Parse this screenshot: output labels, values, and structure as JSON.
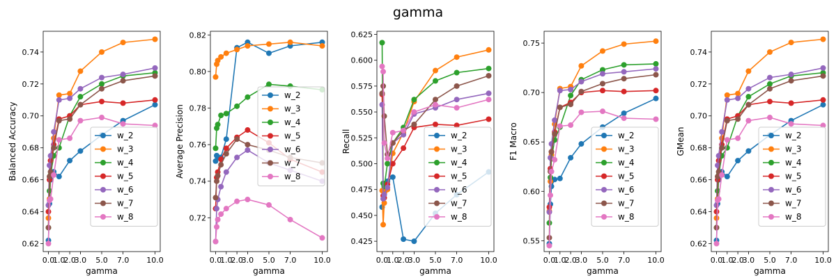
{
  "figure": {
    "title": "gamma"
  },
  "series_colors": {
    "w_2": "#1f77b4",
    "w_3": "#ff7f0e",
    "w_4": "#2ca02c",
    "w_5": "#d62728",
    "w_6": "#9467bd",
    "w_7": "#8c564b",
    "w_8": "#e377c2"
  },
  "chart_data": [
    {
      "type": "line",
      "xlabel": "gamma",
      "ylabel": "Balanced Accuracy",
      "x": [
        0.0,
        0.1,
        0.2,
        0.5,
        1.0,
        2.0,
        3.0,
        5.0,
        7.0,
        10.0
      ],
      "xticks": [
        0.0,
        1.0,
        2.0,
        3.0,
        5.0,
        7.0,
        10.0
      ],
      "xtick_labels": [
        "0.0",
        "1.0",
        "2.0",
        "3.0",
        "5.0",
        "7.0",
        "10.0"
      ],
      "ylim": [
        0.615,
        0.753
      ],
      "yticks": [
        0.62,
        0.64,
        0.66,
        0.68,
        0.7,
        0.72,
        0.74
      ],
      "ytick_labels": [
        "0.62",
        "0.64",
        "0.66",
        "0.68",
        "0.70",
        "0.72",
        "0.74"
      ],
      "legend": "lower-right",
      "series": [
        {
          "name": "w_2",
          "values": [
            0.622,
            0.645,
            0.66,
            0.665,
            0.662,
            0.672,
            0.678,
            0.688,
            0.697,
            0.707
          ]
        },
        {
          "name": "w_3",
          "values": [
            0.636,
            0.648,
            0.663,
            0.686,
            0.713,
            0.714,
            0.728,
            0.74,
            0.746,
            0.748
          ]
        },
        {
          "name": "w_4",
          "values": [
            0.63,
            0.653,
            0.663,
            0.675,
            0.68,
            0.7,
            0.712,
            0.72,
            0.725,
            0.727
          ]
        },
        {
          "name": "w_5",
          "values": [
            0.64,
            0.66,
            0.672,
            0.682,
            0.698,
            0.7,
            0.707,
            0.709,
            0.708,
            0.71
          ]
        },
        {
          "name": "w_6",
          "values": [
            0.644,
            0.669,
            0.675,
            0.69,
            0.71,
            0.711,
            0.717,
            0.724,
            0.726,
            0.73
          ]
        },
        {
          "name": "w_7",
          "values": [
            0.63,
            0.662,
            0.665,
            0.68,
            0.697,
            0.698,
            0.707,
            0.717,
            0.722,
            0.725
          ]
        },
        {
          "name": "w_8",
          "values": [
            0.62,
            0.647,
            0.648,
            0.663,
            0.685,
            0.686,
            0.697,
            0.699,
            0.695,
            0.694
          ]
        }
      ]
    },
    {
      "type": "line",
      "xlabel": "gamma",
      "ylabel": "Average Precision",
      "x": [
        0.0,
        0.1,
        0.2,
        0.5,
        1.0,
        2.0,
        3.0,
        5.0,
        7.0,
        10.0
      ],
      "xticks": [
        0.0,
        1.0,
        2.0,
        3.0,
        5.0,
        7.0,
        10.0
      ],
      "xtick_labels": [
        "0.0",
        "1.0",
        "2.0",
        "3.0",
        "5.0",
        "7.0",
        "10.0"
      ],
      "ylim": [
        0.7015,
        0.822
      ],
      "yticks": [
        0.72,
        0.74,
        0.76,
        0.78,
        0.8,
        0.82
      ],
      "ytick_labels": [
        "0.72",
        "0.74",
        "0.76",
        "0.78",
        "0.80",
        "0.82"
      ],
      "legend": "center-right",
      "series": [
        {
          "name": "w_2",
          "values": [
            0.751,
            0.754,
            0.753,
            0.753,
            0.763,
            0.813,
            0.816,
            0.81,
            0.814,
            0.816
          ]
        },
        {
          "name": "w_3",
          "values": [
            0.797,
            0.804,
            0.806,
            0.808,
            0.81,
            0.812,
            0.814,
            0.815,
            0.816,
            0.814
          ]
        },
        {
          "name": "w_4",
          "values": [
            0.758,
            0.769,
            0.771,
            0.776,
            0.777,
            0.781,
            0.786,
            0.793,
            0.792,
            0.79
          ]
        },
        {
          "name": "w_5",
          "values": [
            0.725,
            0.742,
            0.745,
            0.752,
            0.758,
            0.764,
            0.768,
            0.761,
            0.752,
            0.745
          ]
        },
        {
          "name": "w_6",
          "values": [
            0.707,
            0.725,
            0.73,
            0.737,
            0.745,
            0.753,
            0.757,
            0.75,
            0.746,
            0.74
          ]
        },
        {
          "name": "w_7",
          "values": [
            0.731,
            0.74,
            0.743,
            0.749,
            0.755,
            0.763,
            0.76,
            0.757,
            0.753,
            0.75
          ]
        },
        {
          "name": "w_8",
          "values": [
            0.707,
            0.715,
            0.719,
            0.722,
            0.725,
            0.729,
            0.73,
            0.727,
            0.719,
            0.709
          ]
        }
      ]
    },
    {
      "type": "line",
      "xlabel": "gamma",
      "ylabel": "Recall",
      "x": [
        0.0,
        0.1,
        0.2,
        0.5,
        1.0,
        2.0,
        3.0,
        5.0,
        7.0,
        10.0
      ],
      "xticks": [
        0.0,
        1.0,
        2.0,
        3.0,
        5.0,
        7.0,
        10.0
      ],
      "xtick_labels": [
        "0.0",
        "1.0",
        "2.0",
        "3.0",
        "5.0",
        "7.0",
        "10.0"
      ],
      "ylim": [
        0.415,
        0.628
      ],
      "yticks": [
        0.425,
        0.45,
        0.475,
        0.5,
        0.525,
        0.55,
        0.575,
        0.6,
        0.625
      ],
      "ytick_labels": [
        "0.425",
        "0.450",
        "0.475",
        "0.500",
        "0.525",
        "0.550",
        "0.575",
        "0.600",
        "0.625"
      ],
      "legend": "lower-right",
      "series": [
        {
          "name": "w_2",
          "values": [
            0.458,
            0.474,
            0.478,
            0.483,
            0.487,
            0.427,
            0.425,
            0.452,
            0.47,
            0.492
          ]
        },
        {
          "name": "w_3",
          "values": [
            0.474,
            0.441,
            0.462,
            0.475,
            0.51,
            0.53,
            0.56,
            0.59,
            0.603,
            0.61
          ]
        },
        {
          "name": "w_4",
          "values": [
            0.617,
            0.481,
            0.478,
            0.5,
            0.52,
            0.535,
            0.562,
            0.58,
            0.588,
            0.592
          ]
        },
        {
          "name": "w_5",
          "values": [
            0.567,
            0.469,
            0.467,
            0.48,
            0.5,
            0.515,
            0.535,
            0.538,
            0.537,
            0.543
          ]
        },
        {
          "name": "w_6",
          "values": [
            0.557,
            0.466,
            0.47,
            0.477,
            0.52,
            0.528,
            0.548,
            0.554,
            0.562,
            0.568
          ]
        },
        {
          "name": "w_7",
          "values": [
            0.568,
            0.575,
            0.546,
            0.509,
            0.52,
            0.532,
            0.538,
            0.562,
            0.575,
            0.585
          ]
        },
        {
          "name": "w_8",
          "values": [
            0.594,
            0.589,
            0.52,
            0.505,
            0.53,
            0.532,
            0.55,
            0.557,
            0.554,
            0.562
          ]
        }
      ]
    },
    {
      "type": "line",
      "xlabel": "gamma",
      "ylabel": "F1 Macro",
      "x": [
        0.0,
        0.1,
        0.2,
        0.5,
        1.0,
        2.0,
        3.0,
        5.0,
        7.0,
        10.0
      ],
      "xticks": [
        0.0,
        1.0,
        2.0,
        3.0,
        5.0,
        7.0,
        10.0
      ],
      "xtick_labels": [
        "0.0",
        "1.0",
        "2.0",
        "3.0",
        "5.0",
        "7.0",
        "10.0"
      ],
      "ylim": [
        0.539,
        0.762
      ],
      "yticks": [
        0.55,
        0.6,
        0.65,
        0.7,
        0.75
      ],
      "ytick_labels": [
        "0.55",
        "0.60",
        "0.65",
        "0.70",
        "0.75"
      ],
      "legend": "lower-right",
      "series": [
        {
          "name": "w_2",
          "values": [
            0.547,
            0.587,
            0.605,
            0.612,
            0.613,
            0.634,
            0.648,
            0.665,
            0.679,
            0.694
          ]
        },
        {
          "name": "w_3",
          "values": [
            0.58,
            0.61,
            0.637,
            0.668,
            0.704,
            0.706,
            0.727,
            0.742,
            0.749,
            0.752
          ]
        },
        {
          "name": "w_4",
          "values": [
            0.568,
            0.614,
            0.633,
            0.652,
            0.665,
            0.697,
            0.713,
            0.723,
            0.728,
            0.729
          ]
        },
        {
          "name": "w_5",
          "values": [
            0.584,
            0.623,
            0.64,
            0.66,
            0.685,
            0.69,
            0.7,
            0.702,
            0.701,
            0.702
          ]
        },
        {
          "name": "w_6",
          "values": [
            0.579,
            0.634,
            0.648,
            0.672,
            0.702,
            0.703,
            0.711,
            0.719,
            0.721,
            0.724
          ]
        },
        {
          "name": "w_7",
          "values": [
            0.553,
            0.62,
            0.64,
            0.658,
            0.685,
            0.688,
            0.701,
            0.709,
            0.714,
            0.718
          ]
        },
        {
          "name": "w_8",
          "values": [
            0.545,
            0.596,
            0.62,
            0.632,
            0.666,
            0.667,
            0.68,
            0.681,
            0.674,
            0.673
          ]
        }
      ]
    },
    {
      "type": "line",
      "xlabel": "gamma",
      "ylabel": "GMean",
      "x": [
        0.0,
        0.1,
        0.2,
        0.5,
        1.0,
        2.0,
        3.0,
        5.0,
        7.0,
        10.0
      ],
      "xticks": [
        0.0,
        1.0,
        2.0,
        3.0,
        5.0,
        7.0,
        10.0
      ],
      "xtick_labels": [
        "0.0",
        "1.0",
        "2.0",
        "3.0",
        "5.0",
        "7.0",
        "10.0"
      ],
      "ylim": [
        0.615,
        0.753
      ],
      "yticks": [
        0.62,
        0.64,
        0.66,
        0.68,
        0.7,
        0.72,
        0.74
      ],
      "ytick_labels": [
        "0.62",
        "0.64",
        "0.66",
        "0.68",
        "0.70",
        "0.72",
        "0.74"
      ],
      "legend": "lower-right",
      "series": [
        {
          "name": "w_2",
          "values": [
            0.622,
            0.645,
            0.66,
            0.665,
            0.662,
            0.672,
            0.678,
            0.688,
            0.697,
            0.707
          ]
        },
        {
          "name": "w_3",
          "values": [
            0.636,
            0.648,
            0.663,
            0.686,
            0.713,
            0.714,
            0.728,
            0.74,
            0.746,
            0.748
          ]
        },
        {
          "name": "w_4",
          "values": [
            0.63,
            0.653,
            0.663,
            0.675,
            0.68,
            0.7,
            0.712,
            0.72,
            0.725,
            0.727
          ]
        },
        {
          "name": "w_5",
          "values": [
            0.64,
            0.66,
            0.672,
            0.682,
            0.698,
            0.7,
            0.707,
            0.709,
            0.708,
            0.71
          ]
        },
        {
          "name": "w_6",
          "values": [
            0.644,
            0.669,
            0.675,
            0.69,
            0.71,
            0.711,
            0.717,
            0.724,
            0.726,
            0.73
          ]
        },
        {
          "name": "w_7",
          "values": [
            0.63,
            0.662,
            0.665,
            0.68,
            0.697,
            0.698,
            0.707,
            0.717,
            0.722,
            0.725
          ]
        },
        {
          "name": "w_8",
          "values": [
            0.62,
            0.647,
            0.648,
            0.663,
            0.685,
            0.686,
            0.697,
            0.699,
            0.695,
            0.694
          ]
        }
      ]
    }
  ]
}
